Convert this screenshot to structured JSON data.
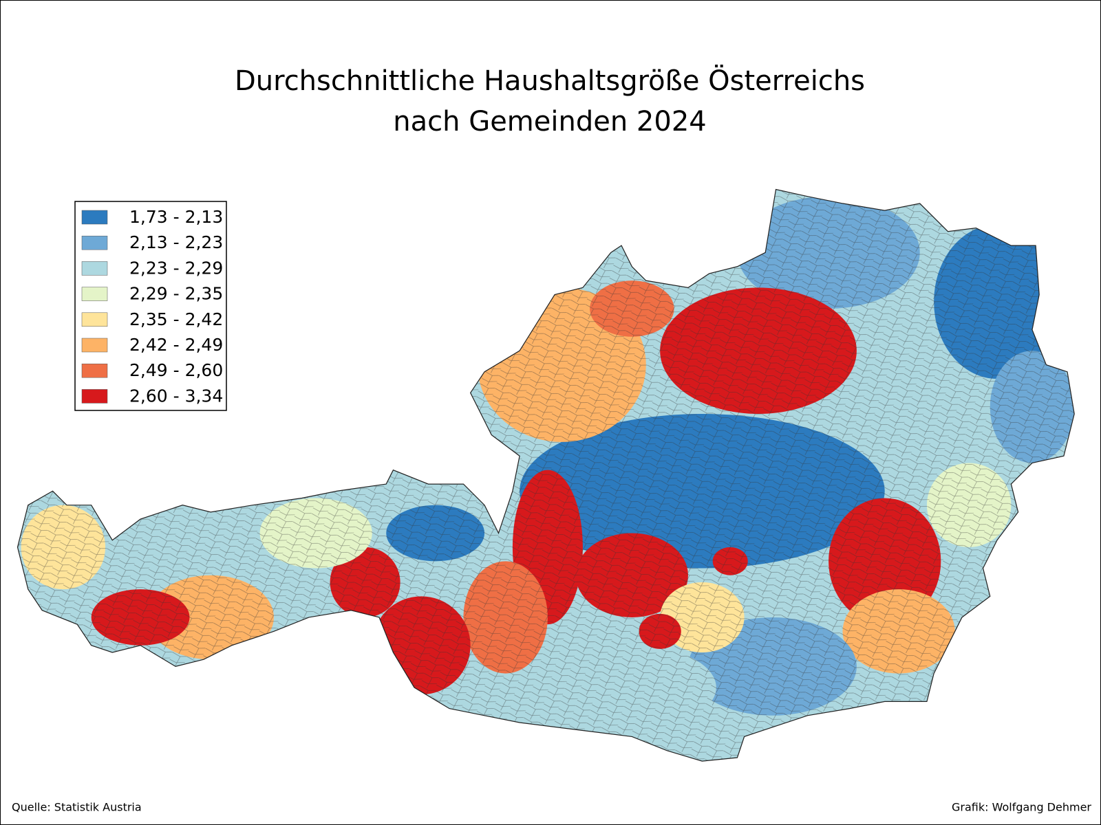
{
  "title": [
    "Durchschnittliche Haushaltsgröße Österreichs",
    "nach Gemeinden 2024"
  ],
  "legend": [
    {
      "label": "1,73 - 2,13",
      "color": "#2c7bbf"
    },
    {
      "label": "2,13 - 2,23",
      "color": "#6ea9d6"
    },
    {
      "label": "2,23 - 2,29",
      "color": "#add8e0"
    },
    {
      "label": "2,29 - 2,35",
      "color": "#e4f4c8"
    },
    {
      "label": "2,35 - 2,42",
      "color": "#fee49a"
    },
    {
      "label": "2,42 - 2,49",
      "color": "#fdb366"
    },
    {
      "label": "2,49 - 2,60",
      "color": "#ef6f45"
    },
    {
      "label": "2,60 - 3,34",
      "color": "#d7191c"
    }
  ],
  "source": "Quelle: Statistik Austria",
  "credit": "Grafik: Wolfgang Dehmer"
}
